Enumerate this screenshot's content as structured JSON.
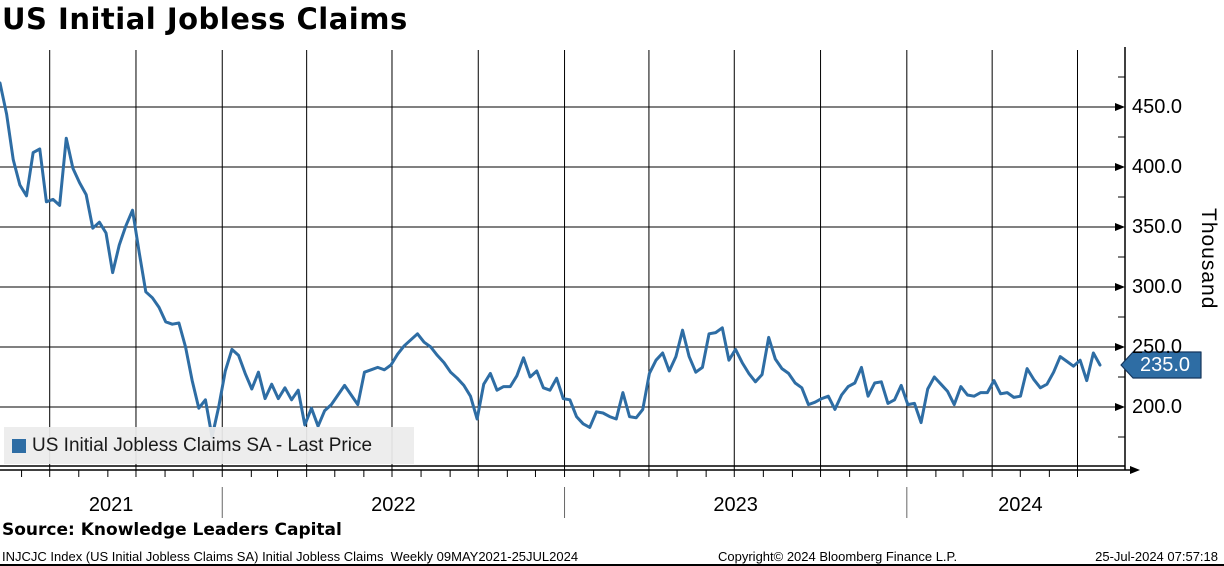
{
  "title": "US Initial Jobless Claims",
  "legend": {
    "label": "US Initial Jobless Claims SA - Last Price",
    "swatch_color": "#2e6da4"
  },
  "last_price_badge": {
    "value": "235.0",
    "bg_color": "#2e6da4",
    "border_color": "#16365c",
    "text_color": "#ffffff"
  },
  "y_axis": {
    "unit_label": "Thousand",
    "tick_labels": [
      "450.0",
      "400.0",
      "350.0",
      "300.0",
      "250.0",
      "200.0"
    ]
  },
  "x_axis": {
    "year_labels": [
      "2021",
      "2022",
      "2023",
      "2024"
    ]
  },
  "source_line": "Source: Knowledge Leaders Capital",
  "footer": {
    "left": "INJCJC Index (US Initial Jobless Claims SA) Initial Jobless Claims  Weekly 09MAY2021-25JUL2024",
    "center": "Copyright© 2024 Bloomberg Finance L.P.",
    "right": "25-Jul-2024 07:57:18"
  },
  "chart_data": {
    "type": "line",
    "title": "US Initial Jobless Claims",
    "ylabel": "Thousand",
    "ylim": [
      150,
      500
    ],
    "yticks": [
      200,
      250,
      300,
      350,
      400,
      450
    ],
    "y_minor_step": 25,
    "grid": true,
    "legend_position": "bottom-left",
    "x_start": "2021-05-09",
    "x_end": "2024-07-25",
    "frequency": "weekly",
    "last_value": 235.0,
    "series": [
      {
        "name": "US Initial Jobless Claims SA - Last Price",
        "color": "#2e6da4",
        "values": [
          470,
          444,
          406,
          385,
          376,
          412,
          415,
          371,
          373,
          368,
          424,
          399,
          387,
          377,
          349,
          354,
          345,
          312,
          335,
          351,
          364,
          329,
          296,
          291,
          283,
          271,
          269,
          270,
          250,
          222,
          199,
          206,
          175,
          200,
          230,
          248,
          243,
          228,
          215,
          229,
          207,
          219,
          207,
          216,
          206,
          214,
          185,
          199,
          184,
          197,
          202,
          210,
          218,
          210,
          202,
          229,
          231,
          233,
          231,
          235,
          244,
          251,
          256,
          261,
          254,
          250,
          243,
          237,
          229,
          224,
          218,
          209,
          190,
          219,
          228,
          214,
          217,
          217,
          226,
          241,
          225,
          230,
          216,
          214,
          224,
          207,
          206,
          192,
          186,
          183,
          196,
          195,
          192,
          190,
          212,
          192,
          191,
          198,
          228,
          239,
          245,
          230,
          242,
          264,
          242,
          229,
          233,
          261,
          262,
          266,
          239,
          248,
          237,
          228,
          221,
          227,
          258,
          240,
          232,
          228,
          220,
          216,
          202,
          204,
          207,
          209,
          198,
          210,
          217,
          220,
          233,
          209,
          220,
          221,
          203,
          206,
          218,
          202,
          203,
          187,
          215,
          225,
          219,
          213,
          202,
          217,
          210,
          209,
          212,
          212,
          222,
          211,
          212,
          208,
          209,
          232,
          223,
          216,
          219,
          229,
          242,
          238,
          234,
          239,
          222,
          245,
          235
        ]
      }
    ]
  }
}
